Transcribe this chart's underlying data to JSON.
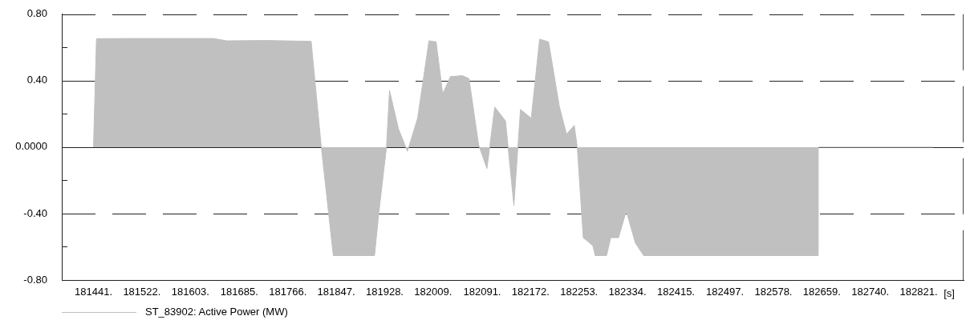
{
  "chart_data": {
    "type": "area",
    "xlabel": "[s]",
    "x": [
      181441,
      181446,
      181499,
      181642,
      181664,
      181731,
      181805,
      181822,
      181842,
      181911,
      181918,
      181931,
      181936,
      181951,
      181966,
      181983,
      182002,
      182014,
      182025,
      182038,
      182058,
      182069,
      182085,
      182099,
      182112,
      182130,
      182144,
      182155,
      182173,
      182187,
      182202,
      182220,
      182232,
      182245,
      182250,
      182260,
      182276,
      182280,
      182299,
      182306,
      182319,
      182332,
      182347,
      182361,
      182652,
      182653,
      182845
    ],
    "series": [
      {
        "name": "ST_83902: Active Power (MW)",
        "color": "#c0c0c0",
        "values": [
          0,
          0.653,
          0.654,
          0.654,
          0.64,
          0.642,
          0.637,
          0,
          -0.653,
          -0.653,
          -0.4,
          0,
          0.342,
          0.11,
          -0.025,
          0.174,
          0.64,
          0.634,
          0.321,
          0.425,
          0.43,
          0.413,
          0.014,
          -0.129,
          0.241,
          0.158,
          -0.353,
          0.227,
          0.174,
          0.65,
          0.634,
          0.246,
          0.078,
          0.131,
          0,
          -0.545,
          -0.593,
          -0.653,
          -0.653,
          -0.545,
          -0.545,
          -0.385,
          -0.576,
          -0.653,
          -0.653,
          0,
          0
        ]
      }
    ],
    "xlim": [
      181388,
      182896
    ],
    "xticks": [
      {
        "value": 181441,
        "label": "181441."
      },
      {
        "value": 181522,
        "label": "181522."
      },
      {
        "value": 181603,
        "label": "181603."
      },
      {
        "value": 181685,
        "label": "181685."
      },
      {
        "value": 181766,
        "label": "181766."
      },
      {
        "value": 181847,
        "label": "181847."
      },
      {
        "value": 181928,
        "label": "181928."
      },
      {
        "value": 182009,
        "label": "182009."
      },
      {
        "value": 182091,
        "label": "182091."
      },
      {
        "value": 182172,
        "label": "182172."
      },
      {
        "value": 182253,
        "label": "182253."
      },
      {
        "value": 182334,
        "label": "182334."
      },
      {
        "value": 182415,
        "label": "182415."
      },
      {
        "value": 182497,
        "label": "182497."
      },
      {
        "value": 182578,
        "label": "182578."
      },
      {
        "value": 182659,
        "label": "182659."
      },
      {
        "value": 182740,
        "label": "182740."
      },
      {
        "value": 182821,
        "label": "182821."
      }
    ],
    "ylim": [
      -0.8,
      0.8
    ],
    "yticks": [
      {
        "value": -0.8,
        "label": "-0.80"
      },
      {
        "value": -0.6,
        "label": null
      },
      {
        "value": -0.4,
        "label": "-0.40"
      },
      {
        "value": -0.2,
        "label": null
      },
      {
        "value": 0,
        "label": "0.0000"
      },
      {
        "value": 0.2,
        "label": null
      },
      {
        "value": 0.4,
        "label": "0.40"
      },
      {
        "value": 0.6,
        "label": null
      },
      {
        "value": 0.8,
        "label": "0.80"
      }
    ],
    "grid": "y",
    "legend": "bottom left",
    "line_style": "solid"
  }
}
